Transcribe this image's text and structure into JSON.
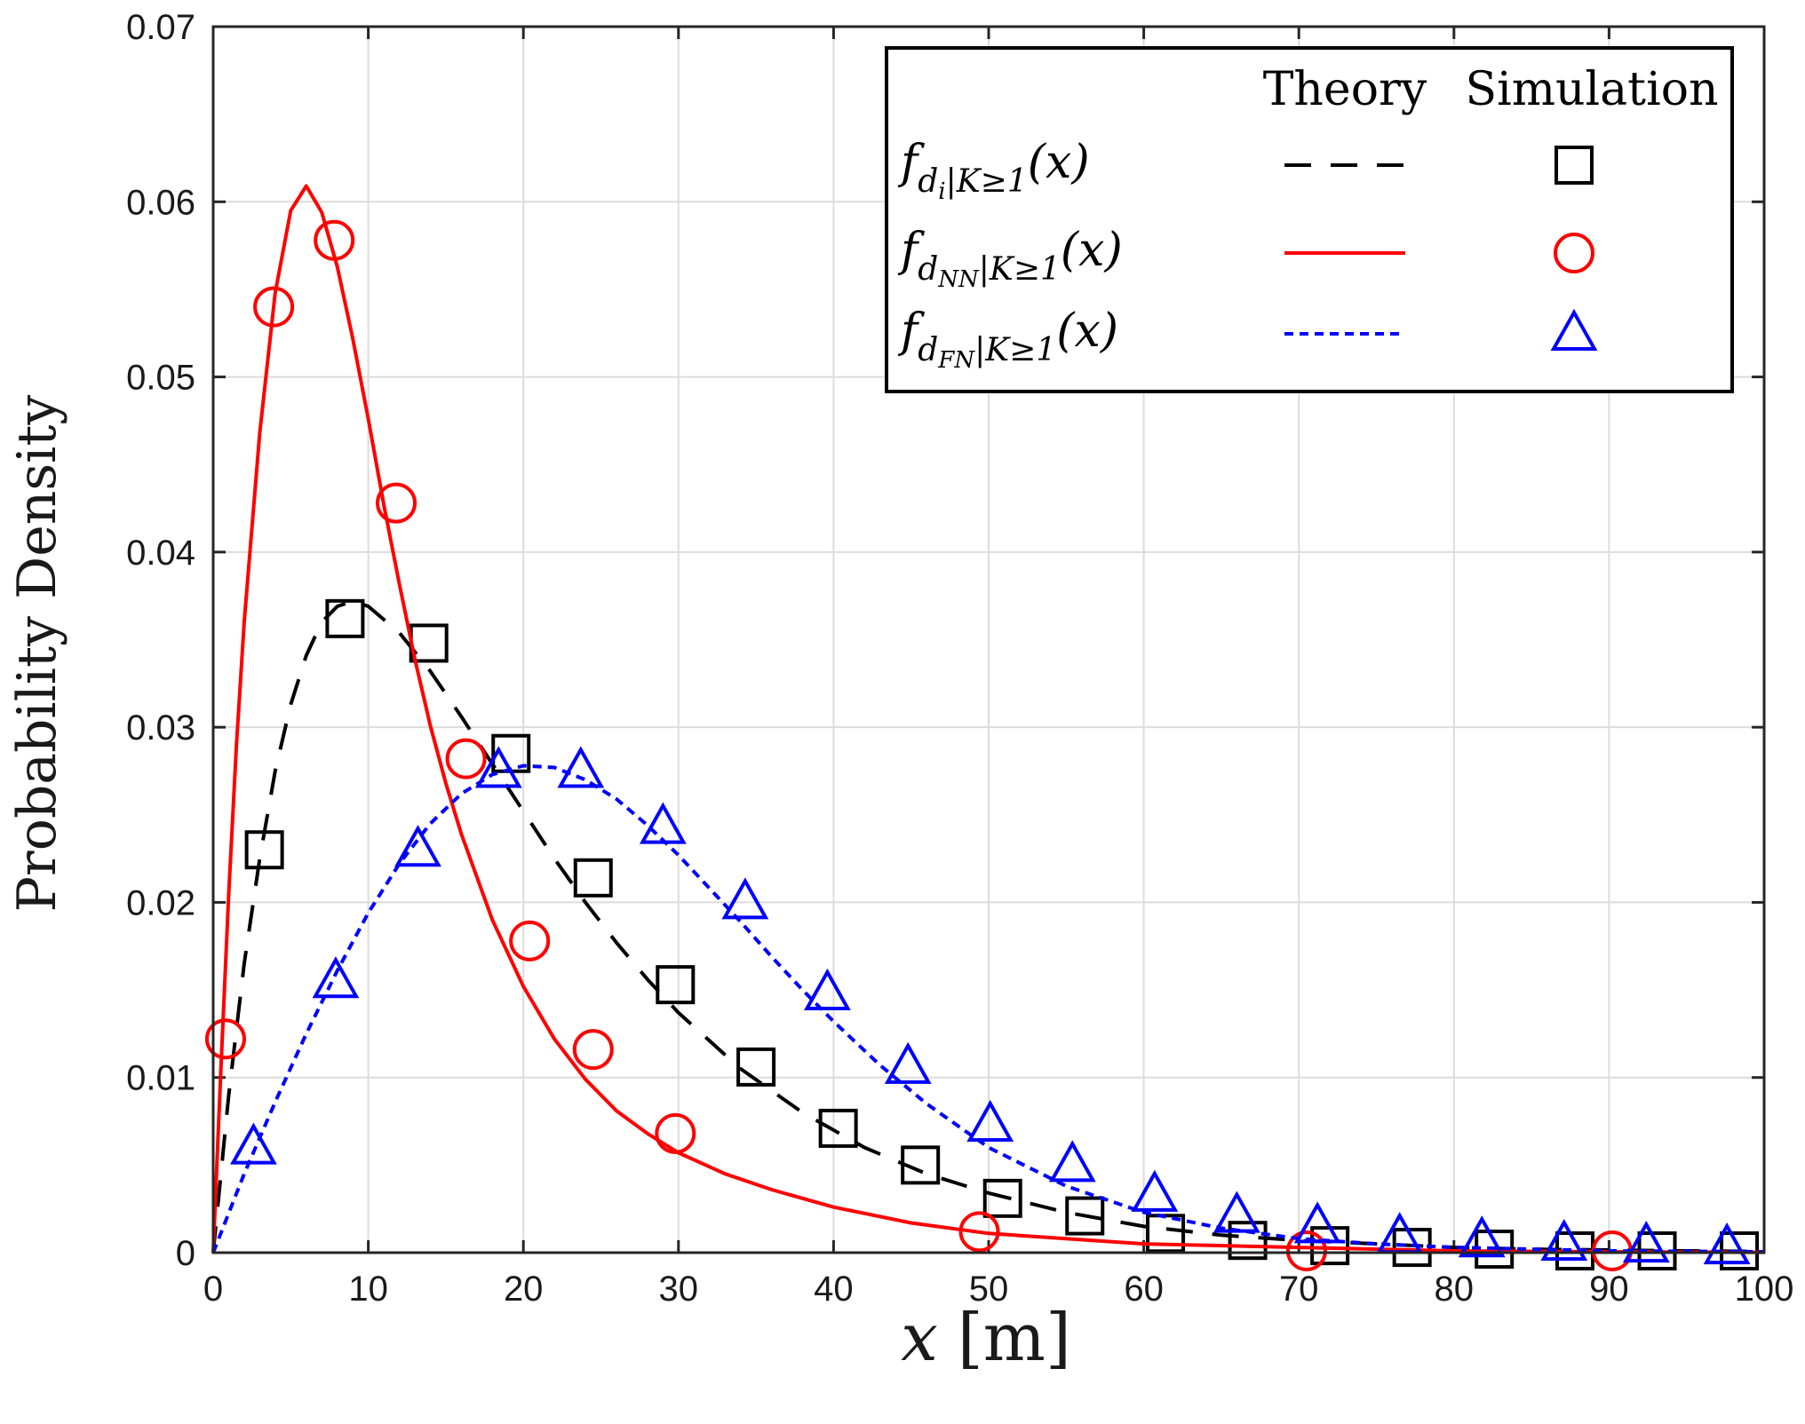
{
  "chart_data": {
    "type": "line",
    "title": "",
    "xlabel_var": "x",
    "xlabel_unit": "[m]",
    "ylabel": "Probability Density",
    "xlim": [
      0,
      100
    ],
    "ylim": [
      0,
      0.07
    ],
    "grid": true,
    "x_ticks": [
      0,
      10,
      20,
      30,
      40,
      50,
      60,
      70,
      80,
      90,
      100
    ],
    "x_tick_labels": [
      "0",
      "10",
      "20",
      "30",
      "40",
      "50",
      "60",
      "70",
      "80",
      "90",
      "100"
    ],
    "y_ticks": [
      0,
      0.01,
      0.02,
      0.03,
      0.04,
      0.05,
      0.06,
      0.07
    ],
    "y_tick_labels": [
      "0",
      "0.01",
      "0.02",
      "0.03",
      "0.04",
      "0.05",
      "0.06",
      "0.07"
    ],
    "legend": {
      "position": "top-right",
      "header_theory": "Theory",
      "header_simulation": "Simulation"
    },
    "series": [
      {
        "id": "di",
        "legend_base": "f",
        "legend_sub": "d",
        "legend_sub2": "i",
        "legend_cond": "|K≥1",
        "legend_arg": "(x)",
        "color": "#000000",
        "line_style": "dashed",
        "marker": "square",
        "theory": {
          "x": [
            0,
            1,
            2,
            3,
            4,
            5,
            6,
            7,
            8,
            9,
            10,
            12,
            14,
            16,
            18,
            20,
            22,
            24,
            26,
            28,
            30,
            34,
            38,
            42,
            46,
            50,
            55,
            60,
            65,
            70,
            75,
            80,
            85,
            90,
            95,
            100
          ],
          "y": [
            0,
            0.009,
            0.0165,
            0.0225,
            0.0275,
            0.0313,
            0.0341,
            0.036,
            0.0369,
            0.0372,
            0.0369,
            0.0354,
            0.0332,
            0.0306,
            0.0279,
            0.0252,
            0.0225,
            0.02,
            0.0177,
            0.0156,
            0.0137,
            0.0105,
            0.008,
            0.006,
            0.0045,
            0.0034,
            0.0023,
            0.0015,
            0.001,
            0.0007,
            0.0005,
            0.0003,
            0.0002,
            0.00015,
            0.0001,
            7e-05
          ]
        },
        "simulation": {
          "x": [
            3.3,
            8.5,
            13.9,
            19.2,
            24.5,
            29.8,
            35.0,
            40.3,
            45.6,
            50.9,
            56.2,
            61.4,
            66.7,
            72.0,
            77.3,
            82.6,
            87.8,
            93.1,
            98.4
          ],
          "y": [
            0.023,
            0.0362,
            0.0348,
            0.0285,
            0.0214,
            0.0153,
            0.0106,
            0.0071,
            0.005,
            0.0031,
            0.0021,
            0.0011,
            0.0007,
            0.0004,
            0.0003,
            0.0002,
            0.0001,
            0.0001,
            0.0001
          ]
        }
      },
      {
        "id": "dnn",
        "legend_base": "f",
        "legend_sub": "d",
        "legend_sub2": "NN",
        "legend_cond": "|K≥1",
        "legend_arg": "(x)",
        "color": "#ff0000",
        "line_style": "solid",
        "marker": "circle",
        "theory": {
          "x": [
            0,
            0.5,
            1,
            1.5,
            2,
            3,
            4,
            5,
            6,
            7,
            8,
            9,
            10,
            11,
            12,
            13,
            14,
            15,
            16,
            18,
            20,
            22,
            24,
            26,
            28,
            30,
            33,
            36,
            40,
            45,
            50,
            55,
            60,
            70,
            80,
            90,
            100
          ],
          "y": [
            0,
            0.0105,
            0.0205,
            0.029,
            0.036,
            0.0468,
            0.0548,
            0.0595,
            0.0609,
            0.0594,
            0.0563,
            0.0522,
            0.0476,
            0.0427,
            0.0382,
            0.0339,
            0.0301,
            0.0268,
            0.0239,
            0.019,
            0.0152,
            0.0122,
            0.0099,
            0.0081,
            0.0068,
            0.0057,
            0.0045,
            0.0036,
            0.0026,
            0.0017,
            0.0011,
            0.0008,
            0.0005,
            0.0003,
            0.0001,
            5e-05,
            2e-05
          ]
        },
        "simulation": {
          "x": [
            0.8,
            3.9,
            7.8,
            11.8,
            16.3,
            20.4,
            24.5,
            29.8,
            49.4,
            70.5,
            90.2
          ],
          "y": [
            0.0122,
            0.054,
            0.0578,
            0.0428,
            0.0282,
            0.0178,
            0.0116,
            0.0068,
            0.0012,
            0.0001,
            0.0001
          ]
        }
      },
      {
        "id": "dfn",
        "legend_base": "f",
        "legend_sub": "d",
        "legend_sub2": "FN",
        "legend_cond": "|K≥1",
        "legend_arg": "(x)",
        "color": "#0000ff",
        "line_style": "dotted",
        "marker": "triangle",
        "theory": {
          "x": [
            0,
            2,
            4,
            6,
            8,
            10,
            12,
            14,
            16,
            18,
            20,
            22,
            24,
            26,
            28,
            30,
            32,
            34,
            36,
            38,
            40,
            43,
            46,
            50,
            55,
            60,
            65,
            70,
            75,
            80,
            90,
            100
          ],
          "y": [
            0,
            0.0045,
            0.0086,
            0.0125,
            0.0161,
            0.0194,
            0.0222,
            0.0245,
            0.0262,
            0.0273,
            0.0278,
            0.0277,
            0.027,
            0.0259,
            0.0244,
            0.0227,
            0.0208,
            0.0189,
            0.0169,
            0.015,
            0.0132,
            0.0107,
            0.0085,
            0.006,
            0.0038,
            0.0023,
            0.0014,
            0.0008,
            0.0005,
            0.0003,
            0.0001,
            5e-05
          ]
        },
        "simulation": {
          "x": [
            2.6,
            7.9,
            13.2,
            18.4,
            23.7,
            29.0,
            34.3,
            39.6,
            44.8,
            50.1,
            55.4,
            60.7,
            66.0,
            71.2,
            76.5,
            81.8,
            87.1,
            92.4,
            97.6
          ],
          "y": [
            0.006,
            0.0155,
            0.023,
            0.0275,
            0.0275,
            0.0243,
            0.02,
            0.0148,
            0.0106,
            0.0073,
            0.005,
            0.0033,
            0.0021,
            0.0015,
            0.0009,
            0.0007,
            0.0005,
            0.0004,
            0.0003
          ]
        }
      }
    ]
  }
}
